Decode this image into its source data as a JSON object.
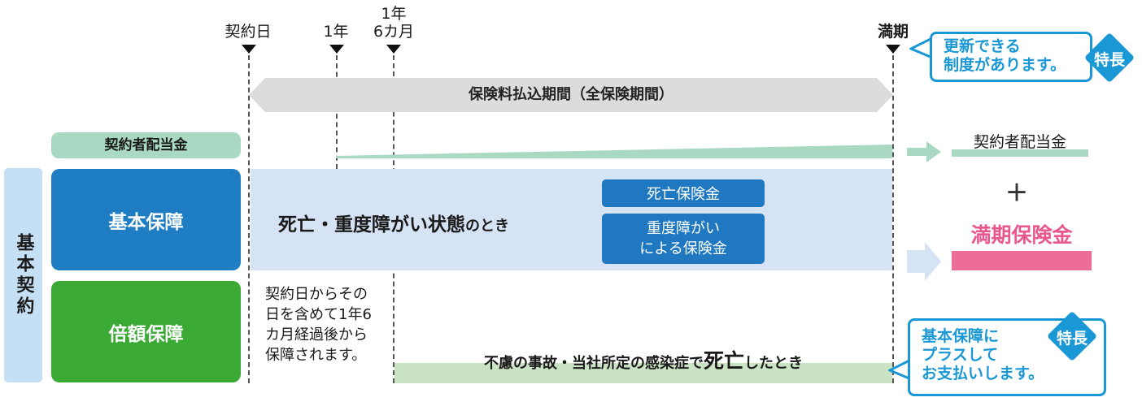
{
  "timeline": {
    "contract_day": "契約日",
    "one_year": "1年",
    "one_year_six_months_line1": "1年",
    "one_year_six_months_line2": "6カ月",
    "maturity": "満期"
  },
  "premium_period": "保険料払込期間（全保険期間）",
  "dividend": {
    "label": "契約者配当金",
    "result_label": "契約者配当金"
  },
  "basic_contract": "基本契約",
  "basic_coverage": {
    "label": "基本保障",
    "condition_main": "死亡・重度障がい状態",
    "condition_suffix": "のとき",
    "death_benefit": "死亡保険金",
    "disability_benefit_line1": "重度障がい",
    "disability_benefit_line2": "による保険金"
  },
  "plus": "＋",
  "maturity_benefit": "満期保険金",
  "double_coverage": {
    "label": "倍額保障",
    "note": [
      "契約日からその",
      "日を含めて1年6",
      "カ月経過後から",
      "保障されます。"
    ],
    "condition_prefix": "不慮の事故・当社所定の感染症で",
    "condition_main": "死亡",
    "condition_suffix": "したとき"
  },
  "callout_renewal": {
    "lines": [
      "更新できる",
      "制度があります。"
    ],
    "badge": "特長"
  },
  "callout_extra": {
    "lines": [
      "基本保障に",
      "プラスして",
      "お支払いします。"
    ],
    "badge": "特長"
  },
  "colors": {
    "blue": "#1f7dc4",
    "green": "#3aaa35",
    "pink": "#ec6d97",
    "callout": "#1a97d5"
  }
}
